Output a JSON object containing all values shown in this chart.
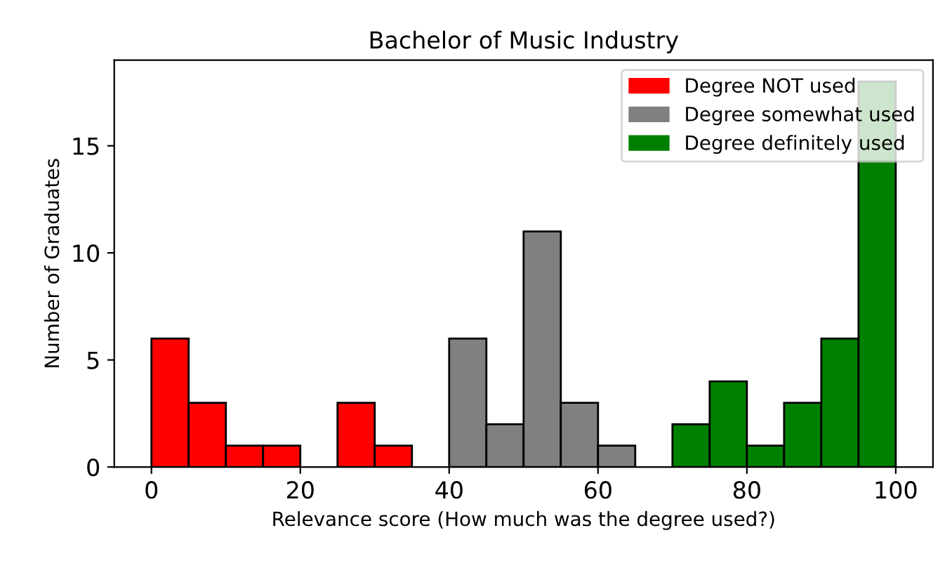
{
  "chart_data": {
    "type": "histogram",
    "title": "Bachelor of Music Industry",
    "xlabel": "Relevance score (How much was the degree used?)",
    "ylabel": "Number of Graduates",
    "bins": [
      0,
      5,
      10,
      15,
      20,
      25,
      30,
      35,
      40,
      45,
      50,
      55,
      60,
      65,
      70,
      75,
      80,
      85,
      90,
      95,
      100
    ],
    "series": [
      {
        "name": "Degree NOT used",
        "color": "#ff0000",
        "values": [
          6,
          3,
          1,
          1,
          0,
          3,
          1,
          0,
          null,
          null,
          null,
          null,
          null,
          null,
          null,
          null,
          null,
          null,
          null,
          null
        ]
      },
      {
        "name": "Degree somewhat used",
        "color": "#808080",
        "values": [
          null,
          null,
          null,
          null,
          null,
          null,
          null,
          null,
          6,
          2,
          11,
          3,
          1,
          0,
          null,
          null,
          null,
          null,
          null,
          null
        ]
      },
      {
        "name": "Degree definitely used",
        "color": "#008000",
        "values": [
          null,
          null,
          null,
          null,
          null,
          null,
          null,
          null,
          null,
          null,
          null,
          null,
          null,
          null,
          2,
          4,
          1,
          3,
          6,
          18
        ]
      }
    ],
    "xlim": [
      -5,
      105
    ],
    "ylim": [
      0,
      19
    ],
    "xticks": [
      0,
      20,
      40,
      60,
      80,
      100
    ],
    "yticks": [
      0,
      5,
      10,
      15
    ],
    "legend": "top right"
  }
}
